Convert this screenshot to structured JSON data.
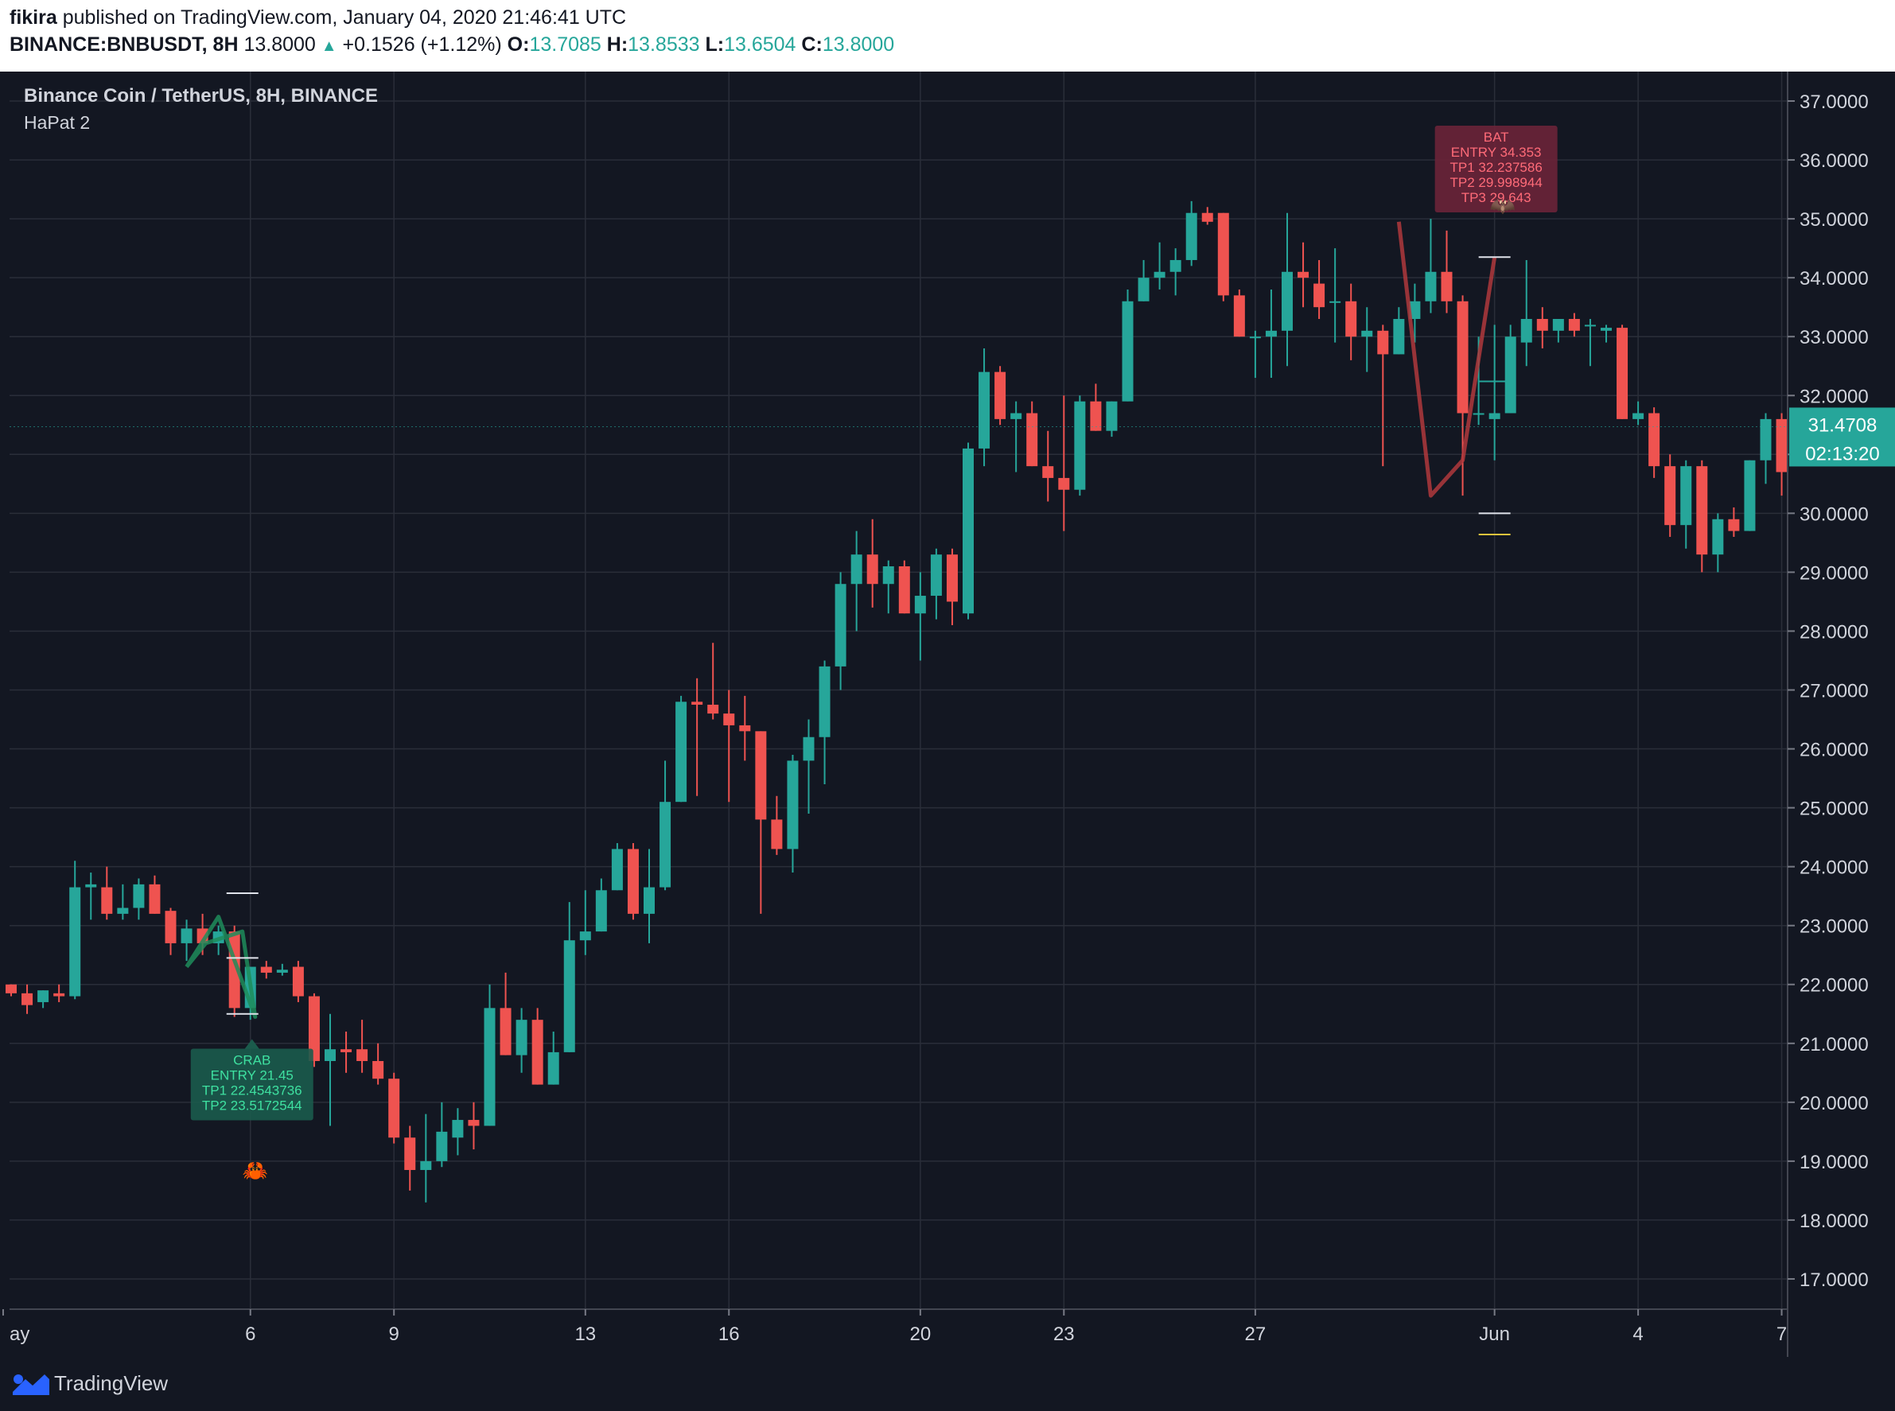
{
  "header": {
    "author": "fikira",
    "published_text": "published on TradingView.com, January 04, 2020 21:46:41 UTC",
    "symbol": "BINANCE:BNBUSDT, 8H",
    "last": "13.8000",
    "change_arrow": "▲",
    "change": "+0.1526 (+1.12%)",
    "o_label": "O:",
    "o_value": "13.7085",
    "h_label": "H:",
    "h_value": "13.8533",
    "l_label": "L:",
    "l_value": "13.6504",
    "c_label": "C:",
    "c_value": "13.8000"
  },
  "legend": {
    "title": "Binance Coin / TetherUS, 8H, BINANCE",
    "indicator": "HaPat 2"
  },
  "footer": {
    "brand": "TradingView",
    "logo_icon": "tradingview-logo-icon"
  },
  "colors": {
    "background": "#131722",
    "grid": "#2a2e39",
    "up": "#26a69a",
    "down": "#ef5350",
    "text": "#d1d4dc",
    "crab": "#1e8c5a",
    "bat": "#b0383c"
  },
  "chart_data": {
    "type": "candlestick",
    "title": "Binance Coin / TetherUS, 8H, BINANCE",
    "ylim": [
      16.5,
      37.5
    ],
    "y_ticks": [
      "37.0000",
      "36.0000",
      "35.0000",
      "34.0000",
      "33.0000",
      "32.0000",
      "31.0000",
      "30.0000",
      "29.0000",
      "28.0000",
      "27.0000",
      "26.0000",
      "25.0000",
      "24.0000",
      "23.0000",
      "22.0000",
      "21.0000",
      "20.0000",
      "19.0000",
      "18.0000",
      "17.0000"
    ],
    "x_labels": [
      {
        "label": "ay",
        "i": -0.5
      },
      {
        "label": "6",
        "i": 15
      },
      {
        "label": "9",
        "i": 24
      },
      {
        "label": "13",
        "i": 36
      },
      {
        "label": "16",
        "i": 45
      },
      {
        "label": "20",
        "i": 57
      },
      {
        "label": "23",
        "i": 66
      },
      {
        "label": "27",
        "i": 78
      },
      {
        "label": "Jun",
        "i": 93
      },
      {
        "label": "4",
        "i": 102
      },
      {
        "label": "7",
        "i": 111
      }
    ],
    "grid": true,
    "last_price": "31.4708",
    "last_price_value": 31.4708,
    "countdown": "02:13:20",
    "candles": [
      [
        22.0,
        22.0,
        21.8,
        21.85
      ],
      [
        21.85,
        22.0,
        21.5,
        21.65
      ],
      [
        21.7,
        21.9,
        21.6,
        21.9
      ],
      [
        21.85,
        22.0,
        21.7,
        21.8
      ],
      [
        21.8,
        24.1,
        21.75,
        23.65
      ],
      [
        23.65,
        23.9,
        23.1,
        23.7
      ],
      [
        23.65,
        24.0,
        23.1,
        23.2
      ],
      [
        23.2,
        23.7,
        23.1,
        23.3
      ],
      [
        23.3,
        23.8,
        23.1,
        23.7
      ],
      [
        23.7,
        23.85,
        23.2,
        23.2
      ],
      [
        23.25,
        23.3,
        22.5,
        22.7
      ],
      [
        22.7,
        23.1,
        22.4,
        22.95
      ],
      [
        22.95,
        23.2,
        22.5,
        22.7
      ],
      [
        22.7,
        23.0,
        22.5,
        22.9
      ],
      [
        22.9,
        23.0,
        21.45,
        21.6
      ],
      [
        21.6,
        22.3,
        21.4,
        22.3
      ],
      [
        22.3,
        22.4,
        22.1,
        22.2
      ],
      [
        22.2,
        22.35,
        22.15,
        22.25
      ],
      [
        22.3,
        22.4,
        21.7,
        21.8
      ],
      [
        21.8,
        21.85,
        20.6,
        20.7
      ],
      [
        20.7,
        21.5,
        19.6,
        20.9
      ],
      [
        20.9,
        21.2,
        20.5,
        20.85
      ],
      [
        20.9,
        21.4,
        20.5,
        20.7
      ],
      [
        20.7,
        21.0,
        20.3,
        20.4
      ],
      [
        20.4,
        20.5,
        19.3,
        19.4
      ],
      [
        19.4,
        19.6,
        18.5,
        18.85
      ],
      [
        18.85,
        19.8,
        18.3,
        19.0
      ],
      [
        19.0,
        20.0,
        18.9,
        19.5
      ],
      [
        19.4,
        19.9,
        19.1,
        19.7
      ],
      [
        19.7,
        20.0,
        19.2,
        19.6
      ],
      [
        19.6,
        22.0,
        19.6,
        21.6
      ],
      [
        21.6,
        22.2,
        20.8,
        20.8
      ],
      [
        20.8,
        21.6,
        20.5,
        21.4
      ],
      [
        21.4,
        21.6,
        20.3,
        20.3
      ],
      [
        20.3,
        21.2,
        20.3,
        20.85
      ],
      [
        20.85,
        23.4,
        20.85,
        22.75
      ],
      [
        22.75,
        23.6,
        22.5,
        22.9
      ],
      [
        22.9,
        23.8,
        22.9,
        23.6
      ],
      [
        23.6,
        24.4,
        23.6,
        24.3
      ],
      [
        24.3,
        24.4,
        23.1,
        23.2
      ],
      [
        23.2,
        24.3,
        22.7,
        23.65
      ],
      [
        23.65,
        25.8,
        23.6,
        25.1
      ],
      [
        25.1,
        26.9,
        25.1,
        26.8
      ],
      [
        26.8,
        27.2,
        25.2,
        26.75
      ],
      [
        26.75,
        27.8,
        26.5,
        26.6
      ],
      [
        26.6,
        27.0,
        25.1,
        26.4
      ],
      [
        26.4,
        26.9,
        25.8,
        26.3
      ],
      [
        26.3,
        26.3,
        23.2,
        24.8
      ],
      [
        24.8,
        25.2,
        24.2,
        24.3
      ],
      [
        24.3,
        25.9,
        23.9,
        25.8
      ],
      [
        25.8,
        26.5,
        24.9,
        26.2
      ],
      [
        26.2,
        27.5,
        25.4,
        27.4
      ],
      [
        27.4,
        29.0,
        27.0,
        28.8
      ],
      [
        28.8,
        29.7,
        28.0,
        29.3
      ],
      [
        29.3,
        29.9,
        28.4,
        28.8
      ],
      [
        28.8,
        29.2,
        28.3,
        29.1
      ],
      [
        29.1,
        29.2,
        28.3,
        28.3
      ],
      [
        28.3,
        29.0,
        27.5,
        28.6
      ],
      [
        28.6,
        29.4,
        28.2,
        29.3
      ],
      [
        29.3,
        29.4,
        28.1,
        28.5
      ],
      [
        28.3,
        31.2,
        28.2,
        31.1
      ],
      [
        31.1,
        32.8,
        30.8,
        32.4
      ],
      [
        32.4,
        32.5,
        31.5,
        31.6
      ],
      [
        31.6,
        31.9,
        30.7,
        31.7
      ],
      [
        31.7,
        31.9,
        30.8,
        30.8
      ],
      [
        30.8,
        31.4,
        30.2,
        30.6
      ],
      [
        30.6,
        32.0,
        29.7,
        30.4
      ],
      [
        30.4,
        32.0,
        30.3,
        31.9
      ],
      [
        31.9,
        32.2,
        31.4,
        31.4
      ],
      [
        31.4,
        31.9,
        31.3,
        31.9
      ],
      [
        31.9,
        33.8,
        31.9,
        33.6
      ],
      [
        33.6,
        34.3,
        33.6,
        34.0
      ],
      [
        34.0,
        34.6,
        33.8,
        34.1
      ],
      [
        34.1,
        34.5,
        33.7,
        34.3
      ],
      [
        34.3,
        35.3,
        34.2,
        35.1
      ],
      [
        35.1,
        35.2,
        34.9,
        34.95
      ],
      [
        35.1,
        35.1,
        33.6,
        33.7
      ],
      [
        33.7,
        33.8,
        33.0,
        33.0
      ],
      [
        33.0,
        33.1,
        32.3,
        33.0
      ],
      [
        33.0,
        33.8,
        32.3,
        33.1
      ],
      [
        33.1,
        35.1,
        32.5,
        34.1
      ],
      [
        34.1,
        34.6,
        33.5,
        34.0
      ],
      [
        33.9,
        34.3,
        33.3,
        33.5
      ],
      [
        33.6,
        34.5,
        32.9,
        33.6
      ],
      [
        33.6,
        33.9,
        32.6,
        33.0
      ],
      [
        33.0,
        33.5,
        32.4,
        33.1
      ],
      [
        33.1,
        33.2,
        30.8,
        32.7
      ],
      [
        32.7,
        33.5,
        32.7,
        33.3
      ],
      [
        33.3,
        33.9,
        32.9,
        33.6
      ],
      [
        33.6,
        35.0,
        33.4,
        34.1
      ],
      [
        34.1,
        34.8,
        33.4,
        33.6
      ],
      [
        33.6,
        33.7,
        30.3,
        31.7
      ],
      [
        31.7,
        33.0,
        31.5,
        31.7
      ],
      [
        31.6,
        33.2,
        30.9,
        31.7
      ],
      [
        31.7,
        33.2,
        31.7,
        33.0
      ],
      [
        32.9,
        34.3,
        32.5,
        33.3
      ],
      [
        33.3,
        33.5,
        32.8,
        33.1
      ],
      [
        33.1,
        33.3,
        32.9,
        33.3
      ],
      [
        33.3,
        33.4,
        33.0,
        33.1
      ],
      [
        33.2,
        33.3,
        32.5,
        33.2
      ],
      [
        33.1,
        33.2,
        32.9,
        33.15
      ],
      [
        33.15,
        33.2,
        31.6,
        31.6
      ],
      [
        31.6,
        31.9,
        31.5,
        31.7
      ],
      [
        31.7,
        31.8,
        30.6,
        30.8
      ],
      [
        30.8,
        31.0,
        29.6,
        29.8
      ],
      [
        29.8,
        30.9,
        29.4,
        30.8
      ],
      [
        30.8,
        30.9,
        29.0,
        29.3
      ],
      [
        29.3,
        30.0,
        29.0,
        29.9
      ],
      [
        29.9,
        30.1,
        29.6,
        29.7
      ],
      [
        29.7,
        30.9,
        29.7,
        30.9
      ],
      [
        30.9,
        31.7,
        30.5,
        31.6
      ],
      [
        31.6,
        31.7,
        30.3,
        30.7
      ],
      [
        30.7,
        31.1,
        29.6,
        31.1
      ],
      [
        31.1,
        31.7,
        31.0,
        31.5
      ]
    ],
    "patterns": [
      {
        "name": "CRAB",
        "lines": [
          "CRAB",
          "ENTRY 21.45",
          "TP1 22.4543736",
          "TP2 23.5172544"
        ],
        "points": [
          [
            11,
            22.3
          ],
          [
            13,
            23.15
          ],
          [
            15.3,
            21.45
          ],
          [
            14.5,
            22.9
          ],
          [
            12.2,
            22.7
          ],
          [
            11,
            22.3
          ]
        ],
        "levels": [
          23.55,
          22.45,
          21.5
        ]
      },
      {
        "name": "BAT",
        "lines": [
          "BAT",
          "ENTRY 34.353",
          "TP1 32.237586",
          "TP2 29.998944",
          "TP3 29.643"
        ],
        "points": [
          [
            87,
            34.95
          ],
          [
            89,
            30.3
          ],
          [
            91,
            30.9
          ],
          [
            93,
            34.35
          ]
        ],
        "levels": [
          34.35,
          32.24,
          30.0,
          29.64
        ]
      }
    ]
  }
}
